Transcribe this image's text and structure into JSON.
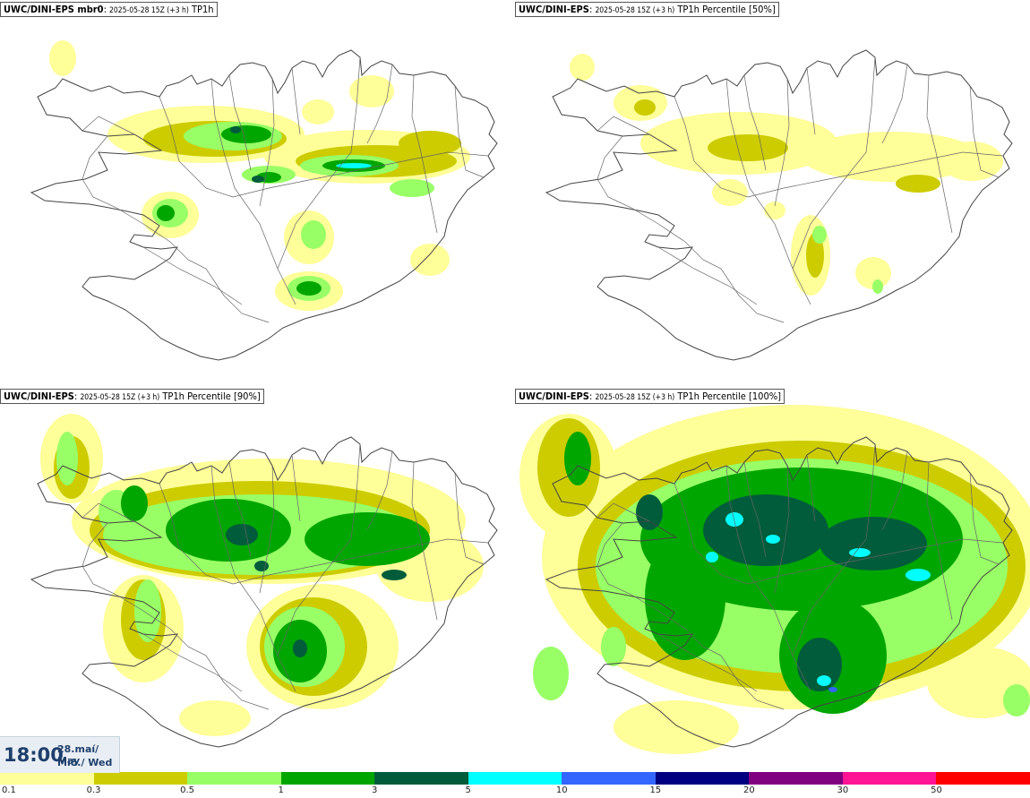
{
  "panels": [
    {
      "model": "UWC/DINI-EPS",
      "member": " mbr0",
      "run": "2025-05-28 15Z (+3 h)",
      "field": "TP1h"
    },
    {
      "model": "UWC/DINI-EPS",
      "member": "",
      "run": "2025-05-28 15Z (+3 h)",
      "field": "TP1h Percentile [50%]"
    },
    {
      "model": "UWC/DINI-EPS",
      "member": "",
      "run": "2025-05-28 15Z (+3 h)",
      "field": "TP1h Percentile [90%]"
    },
    {
      "model": "UWC/DINI-EPS",
      "member": "",
      "run": "2025-05-28 15Z (+3 h)",
      "field": "TP1h Percentile [100%]"
    }
  ],
  "timebox": {
    "time": "18:00",
    "date": "28.maí/ May",
    "day": "Mið./ Wed"
  },
  "colorbar": {
    "labels": [
      "0.1",
      "0.3",
      "0.5",
      "1",
      "3",
      "5",
      "10",
      "15",
      "20",
      "30",
      "50"
    ],
    "colors": [
      "#ffff99",
      "#cccc00",
      "#99ff66",
      "#00a600",
      "#005c3a",
      "#00ffff",
      "#3366ff",
      "#000080",
      "#800080",
      "#ff1493",
      "#ff0000"
    ]
  }
}
